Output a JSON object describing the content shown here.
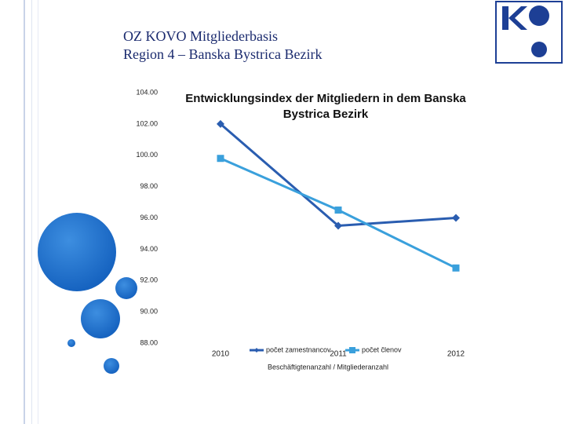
{
  "header": {
    "title": "OZ KOVO Mitgliederbasis",
    "subtitle": "Region 4 – Banska Bystrica Bezirk"
  },
  "chart_data": {
    "type": "line",
    "title": "Entwicklungsindex der Mitgliedern in dem Banska Bystrica Bezirk",
    "x_label": "Beschäftigtenanzahl / Mitgliederanzahl",
    "categories": [
      "2010",
      "2011",
      "2012"
    ],
    "series": [
      {
        "name": "počet zamestnancov",
        "color": "#2a5db0",
        "marker": "diamond",
        "values": [
          102.0,
          95.5,
          96.0
        ]
      },
      {
        "name": "počet členov",
        "color": "#3aa0dc",
        "marker": "square",
        "values": [
          99.8,
          96.5,
          92.8
        ]
      }
    ],
    "ylim": [
      88,
      104
    ],
    "yticks": [
      {
        "value": 88,
        "label": "88.00"
      },
      {
        "value": 90,
        "label": "90.00"
      },
      {
        "value": 92,
        "label": "92.00"
      },
      {
        "value": 94,
        "label": "94.00"
      },
      {
        "value": 96,
        "label": "96.00"
      },
      {
        "value": 98,
        "label": "98.00"
      },
      {
        "value": 100,
        "label": "100.00"
      },
      {
        "value": 102,
        "label": "102.00"
      },
      {
        "value": 104,
        "label": "104.00"
      }
    ],
    "grid": false,
    "legend": "bottom"
  }
}
